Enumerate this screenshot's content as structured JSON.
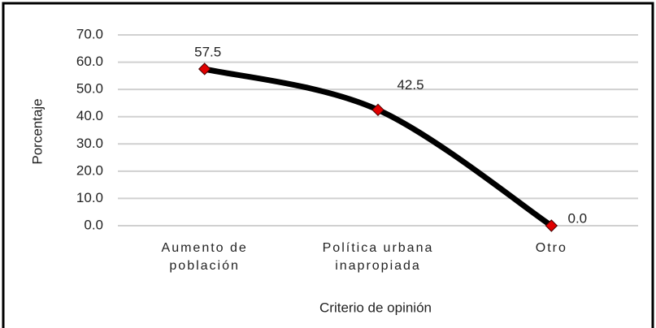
{
  "chart_data": {
    "type": "line",
    "categories": [
      "Aumento de población",
      "Política urbana inapropiada",
      "Otro"
    ],
    "values": [
      57.5,
      42.5,
      0
    ],
    "value_labels": [
      "57.5",
      "42.5",
      "0.0"
    ],
    "color": "#000000",
    "marker_color": "#e00000",
    "xlabel": "Criterio de opinión",
    "ylabel": "Porcentaje",
    "ylim": [
      0,
      70
    ],
    "yticks": [
      {
        "value": 0,
        "label": "0.0"
      },
      {
        "value": 10,
        "label": "10.0"
      },
      {
        "value": 20,
        "label": "20.0"
      },
      {
        "value": 30,
        "label": "30.0"
      },
      {
        "value": 40,
        "label": "40.0"
      },
      {
        "value": 50,
        "label": "50.0"
      },
      {
        "value": 60,
        "label": "60.0"
      },
      {
        "value": 70,
        "label": "70.0"
      }
    ],
    "grid": true
  }
}
